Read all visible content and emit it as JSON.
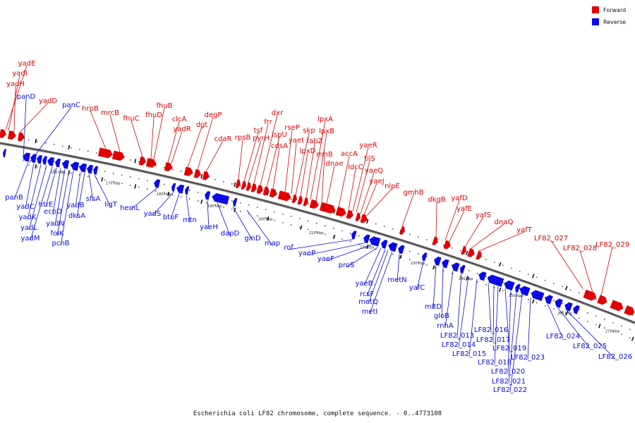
{
  "caption": "Escherichia coli LF82 chromosome, complete sequence. - 0..4773108",
  "legend": [
    {
      "label": "Forward",
      "color": "#e00000"
    },
    {
      "label": "Reverse",
      "color": "#0a0ae6"
    }
  ],
  "colors": {
    "forward": "#e00000",
    "reverse": "#0a0ae6",
    "backbone": "#555555"
  },
  "ticks": [
    "160 kbp",
    "170 kbp",
    "180 kbp",
    "190 kbp",
    "200 kbp",
    "210 kbp",
    "220 kbp",
    "230 kbp",
    "240 kbp",
    "250 kbp",
    "260 kbp",
    "270 kbp"
  ],
  "genes": {
    "forward": [
      "yadE",
      "yadI",
      "yadH",
      "yadD",
      "hrpB",
      "mrcB",
      "fhuC",
      "fhuD",
      "fhuB",
      "clcA",
      "yadR",
      "dgt",
      "degP",
      "cdaR",
      "rpsB",
      "tsf",
      "pyrH",
      "frr",
      "dxr",
      "ispU",
      "cdsA",
      "rseP",
      "yaet",
      "skp",
      "lpxD",
      "fabZ",
      "lpxA",
      "lpxB",
      "rnhB",
      "dnae",
      "accA",
      "ldcC",
      "yaeR",
      "tilS",
      "yaeQ",
      "yaeJ",
      "nlpE",
      "gmhB",
      "dkgB",
      "yafD",
      "yafE",
      "yafS",
      "dnaQ",
      "yafT",
      "LF82_027",
      "LF82_028",
      "LF82_029"
    ],
    "reverse": [
      "panD",
      "panC",
      "panB",
      "yadC",
      "yadK",
      "yadL",
      "yadM",
      "htrE",
      "ecpD",
      "yadN",
      "folK",
      "pcnB",
      "yadB",
      "dksA",
      "sfsA",
      "ligT",
      "hemL",
      "yadS",
      "btuF",
      "mtn",
      "yaeH",
      "dapD",
      "glnD",
      "map",
      "rof",
      "yaeP",
      "yaeF",
      "proS",
      "yaeB",
      "rcsF",
      "metQ",
      "metI",
      "metN",
      "yafC",
      "mltD",
      "gloB",
      "rnhA",
      "LF82_013",
      "LF82_014",
      "LF82_015",
      "LF82_016",
      "LF82_017",
      "LF82_018",
      "LF82_019",
      "LF82_020",
      "LF82_021",
      "LF82_022",
      "LF82_023",
      "LF82_024",
      "LF82_025",
      "LF82_026"
    ]
  }
}
